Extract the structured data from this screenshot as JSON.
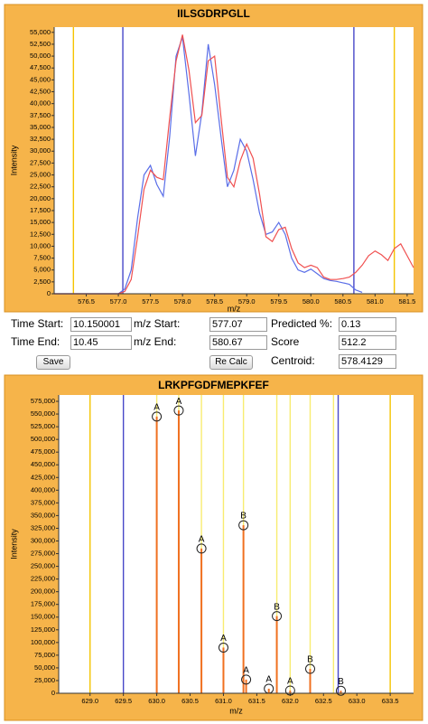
{
  "chart_data": [
    {
      "type": "line",
      "title": "IILSGDRPGLL",
      "xlabel": "m/z",
      "ylabel": "Intensity",
      "x": [
        576.0,
        576.1,
        576.2,
        576.3,
        576.4,
        576.5,
        576.6,
        576.7,
        576.8,
        576.9,
        577.0,
        577.1,
        577.2,
        577.3,
        577.4,
        577.5,
        577.6,
        577.7,
        577.8,
        577.9,
        578.0,
        578.1,
        578.2,
        578.3,
        578.4,
        578.5,
        578.6,
        578.7,
        578.8,
        578.9,
        579.0,
        579.1,
        579.2,
        579.3,
        579.4,
        579.5,
        579.6,
        579.7,
        579.8,
        579.9,
        580.0,
        580.1,
        580.2,
        580.3,
        580.4,
        580.5,
        580.6,
        580.7,
        580.8,
        580.9,
        581.0,
        581.1,
        581.2,
        581.3,
        581.4,
        581.5,
        581.6
      ],
      "series": [
        {
          "color": "#5a6ee8",
          "values": [
            0,
            0,
            0,
            0,
            0,
            0,
            0,
            0,
            0,
            0,
            0,
            1000,
            5000,
            16000,
            25000,
            27000,
            23000,
            20500,
            33000,
            50000,
            54000,
            42000,
            29000,
            38000,
            52500,
            44000,
            33000,
            22500,
            26000,
            32500,
            30000,
            24000,
            17000,
            12500,
            13000,
            15000,
            12500,
            7500,
            5000,
            4500,
            5200,
            4200,
            3200,
            2800,
            2600,
            2300,
            2000,
            800,
            300,
            null,
            null,
            null,
            null,
            null,
            null,
            null,
            null
          ]
        },
        {
          "color": "#f05050",
          "values": [
            0,
            0,
            0,
            0,
            0,
            0,
            0,
            0,
            0,
            0,
            0,
            500,
            3000,
            12000,
            22000,
            26000,
            24500,
            24000,
            37000,
            49000,
            54500,
            47000,
            36000,
            37500,
            49000,
            50000,
            37000,
            24500,
            22500,
            28000,
            31500,
            28500,
            21000,
            12000,
            11000,
            13500,
            14000,
            9500,
            6500,
            5500,
            6000,
            5500,
            3500,
            3000,
            3000,
            3200,
            3500,
            4500,
            6000,
            8000,
            9000,
            8200,
            7000,
            9500,
            10500,
            8000,
            5500
          ]
        }
      ],
      "reference_lines": [
        {
          "value": 576.3,
          "color": "#f5c400"
        },
        {
          "value": 577.07,
          "color": "#4848c8"
        },
        {
          "value": 580.67,
          "color": "#4848c8"
        },
        {
          "value": 581.3,
          "color": "#f5c400"
        }
      ],
      "xlim": [
        576.0,
        581.6
      ],
      "ylim": [
        0,
        56100
      ],
      "xticks": [
        576.5,
        {
          "value": 577,
          "label": "577.0"
        },
        577.5,
        {
          "value": 578,
          "label": "578.0"
        },
        578.5,
        {
          "value": 579,
          "label": "579.0"
        },
        579.5,
        {
          "value": 580,
          "label": "580.0"
        },
        580.5,
        {
          "value": 581,
          "label": "581.0"
        },
        581.5
      ],
      "yticks": [
        0,
        {
          "value": 2500,
          "label": "2,500"
        },
        {
          "value": 5000,
          "label": "5,000"
        },
        {
          "value": 7500,
          "label": "7,500"
        },
        {
          "value": 10000,
          "label": "10,000"
        },
        {
          "value": 12500,
          "label": "12,500"
        },
        {
          "value": 15000,
          "label": "15,000"
        },
        {
          "value": 17500,
          "label": "17,500"
        },
        {
          "value": 20000,
          "label": "20,000"
        },
        {
          "value": 22500,
          "label": "22,500"
        },
        {
          "value": 25000,
          "label": "25,000"
        },
        {
          "value": 27500,
          "label": "27,500"
        },
        {
          "value": 30000,
          "label": "30,000"
        },
        {
          "value": 32500,
          "label": "32,500"
        },
        {
          "value": 35000,
          "label": "35,000"
        },
        {
          "value": 37500,
          "label": "37,500"
        },
        {
          "value": 40000,
          "label": "40,000"
        },
        {
          "value": 42500,
          "label": "42,500"
        },
        {
          "value": 45000,
          "label": "45,000"
        },
        {
          "value": 47500,
          "label": "47,500"
        },
        {
          "value": 50000,
          "label": "50,000"
        },
        {
          "value": 52500,
          "label": "52,500"
        },
        {
          "value": 55000,
          "label": "55,000"
        }
      ]
    },
    {
      "type": "stem",
      "title": "LRKPFGDFMEPKFEF",
      "xlabel": "m/z",
      "ylabel": "Intensity",
      "x": [
        630.0,
        630.33,
        630.67,
        631.0,
        631.3,
        631.34,
        631.68,
        631.8,
        632.0,
        632.3,
        632.76
      ],
      "values": [
        545000,
        557000,
        285000,
        90000,
        331000,
        27000,
        9000,
        152000,
        5400,
        48000,
        5000
      ],
      "peak_labels": [
        "A",
        "A",
        "A",
        "A",
        "B",
        "A",
        "A",
        "B",
        "A",
        "B",
        "B"
      ],
      "color": "#f07020",
      "reference_lines": [
        {
          "value": 629.0,
          "color": "#f5c400"
        },
        {
          "value": 629.5,
          "color": "#4848c8"
        },
        {
          "value": 630.0,
          "color": "#f8ec70"
        },
        {
          "value": 630.33,
          "color": "#f8ec70"
        },
        {
          "value": 630.67,
          "color": "#f8ec70"
        },
        {
          "value": 631.0,
          "color": "#f8ec70"
        },
        {
          "value": 631.3,
          "color": "#f8ec70"
        },
        {
          "value": 631.8,
          "color": "#f8ec70"
        },
        {
          "value": 632.0,
          "color": "#f8ec70"
        },
        {
          "value": 632.3,
          "color": "#f8ec70"
        },
        {
          "value": 632.65,
          "color": "#f8ec70"
        },
        {
          "value": 632.72,
          "color": "#4848c8"
        },
        {
          "value": 633.5,
          "color": "#f5c400"
        }
      ],
      "xlim": [
        628.53,
        633.85
      ],
      "ylim": [
        0,
        587500
      ],
      "xticks": [
        {
          "value": 629,
          "label": "629.0"
        },
        629.5,
        {
          "value": 630,
          "label": "630.0"
        },
        630.5,
        {
          "value": 631,
          "label": "631.0"
        },
        631.5,
        {
          "value": 632,
          "label": "632.0"
        },
        632.5,
        {
          "value": 633,
          "label": "633.0"
        },
        633.5
      ],
      "yticks": [
        0,
        {
          "value": 25000,
          "label": "25,000"
        },
        {
          "value": 50000,
          "label": "50,000"
        },
        {
          "value": 75000,
          "label": "75,000"
        },
        {
          "value": 100000,
          "label": "100,000"
        },
        {
          "value": 125000,
          "label": "125,000"
        },
        {
          "value": 150000,
          "label": "150,000"
        },
        {
          "value": 175000,
          "label": "175,000"
        },
        {
          "value": 200000,
          "label": "200,000"
        },
        {
          "value": 225000,
          "label": "225,000"
        },
        {
          "value": 250000,
          "label": "250,000"
        },
        {
          "value": 275000,
          "label": "275,000"
        },
        {
          "value": 300000,
          "label": "300,000"
        },
        {
          "value": 325000,
          "label": "325,000"
        },
        {
          "value": 350000,
          "label": "350,000"
        },
        {
          "value": 375000,
          "label": "375,000"
        },
        {
          "value": 400000,
          "label": "400,000"
        },
        {
          "value": 425000,
          "label": "425,000"
        },
        {
          "value": 450000,
          "label": "450,000"
        },
        {
          "value": 475000,
          "label": "475,000"
        },
        {
          "value": 500000,
          "label": "500,000"
        },
        {
          "value": 525000,
          "label": "525,000"
        },
        {
          "value": 550000,
          "label": "550,000"
        },
        {
          "value": 575000,
          "label": "575,000"
        }
      ]
    }
  ],
  "form": {
    "fields": [
      {
        "label": "Time Start:",
        "value": "10.150001"
      },
      {
        "label": "m/z Start:",
        "value": "577.07"
      },
      {
        "label": "Predicted %:",
        "value": "0.13"
      },
      {
        "label": "Time End:",
        "value": "10.45"
      },
      {
        "label": "m/z End:",
        "value": "580.67"
      },
      {
        "label": "Score",
        "value": "512.2"
      },
      {
        "label": "Centroid:",
        "value": "578.4129"
      }
    ],
    "buttons": [
      "Save",
      "Re Calc"
    ]
  }
}
